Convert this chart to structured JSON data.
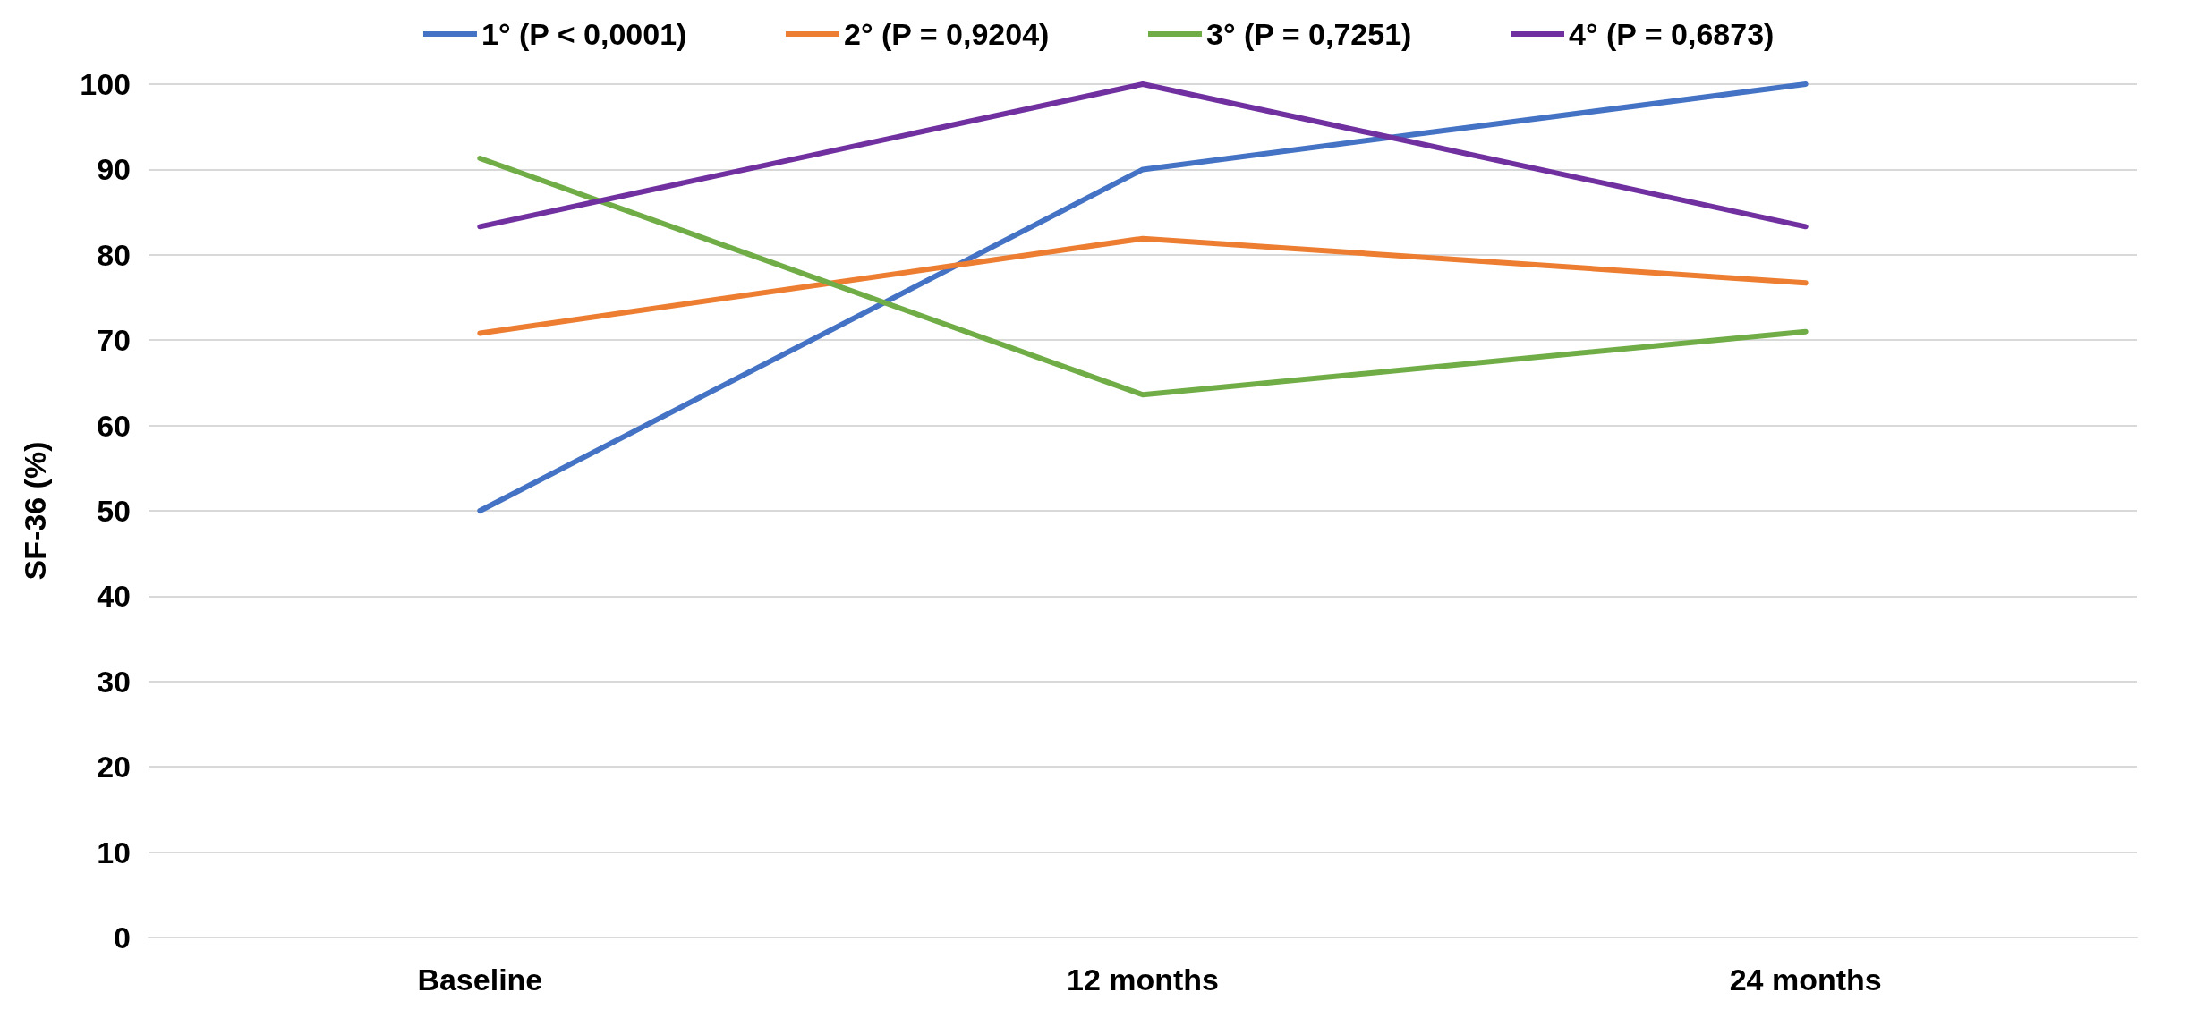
{
  "chart_data": {
    "type": "line",
    "ylabel": "SF-36 (%)",
    "categories": [
      "Baseline",
      "12 months",
      "24 months"
    ],
    "series": [
      {
        "name": "1° (P < 0,0001)",
        "color": "#4472c4",
        "values": [
          50,
          90,
          100
        ]
      },
      {
        "name": "2° (P = 0,9204)",
        "color": "#ed7d31",
        "values": [
          70.8,
          81.9,
          76.7
        ]
      },
      {
        "name": "3° (P = 0,7251)",
        "color": "#70ad47",
        "values": [
          91.3,
          63.6,
          71.0
        ]
      },
      {
        "name": "4° (P = 0,6873)",
        "color": "#7030a0",
        "values": [
          83.3,
          100,
          83.3
        ]
      }
    ],
    "ylim": [
      0,
      100
    ],
    "yticks": [
      0,
      10,
      20,
      30,
      40,
      50,
      60,
      70,
      80,
      90,
      100
    ],
    "grid": "y",
    "legend": "top",
    "marker": "none",
    "line_style": "solid"
  }
}
